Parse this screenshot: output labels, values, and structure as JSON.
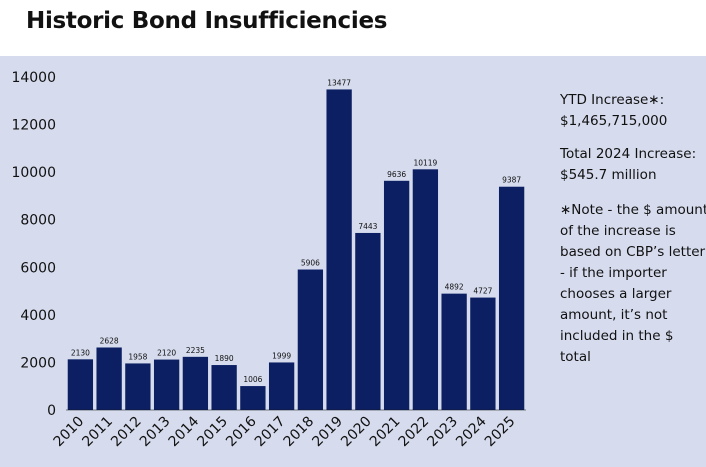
{
  "title": "Historic Bond Insufficiencies",
  "ytd": {
    "label": "YTD Increase∗:",
    "value": "$1,465,715,000"
  },
  "total": {
    "label": "Total 2024 Increase:",
    "value": "$545.7 million"
  },
  "note_lines": [
    "∗Note - the $ amount",
    "of the increase is",
    "based on CBP’s letter",
    "- if the importer",
    "chooses a larger",
    "amount, it’s not",
    "included in the $",
    "total"
  ],
  "colors": {
    "bar": "#0c1f63",
    "panel": "#d6dcee"
  },
  "chart_data": {
    "type": "bar",
    "title": "Historic Bond Insufficiencies",
    "xlabel": "",
    "ylabel": "",
    "categories": [
      "2010",
      "2011",
      "2012",
      "2013",
      "2014",
      "2015",
      "2016",
      "2017",
      "2018",
      "2019",
      "2020",
      "2021",
      "2022",
      "2023",
      "2024",
      "2025"
    ],
    "values": [
      2130,
      2628,
      1958,
      2120,
      2235,
      1890,
      1006,
      1999,
      5906,
      13477,
      7443,
      9636,
      10119,
      4892,
      4727,
      9387
    ],
    "ylim": [
      0,
      14000
    ],
    "yticks": [
      0,
      2000,
      4000,
      6000,
      8000,
      10000,
      12000,
      14000
    ],
    "grid": false,
    "legend": "none"
  }
}
